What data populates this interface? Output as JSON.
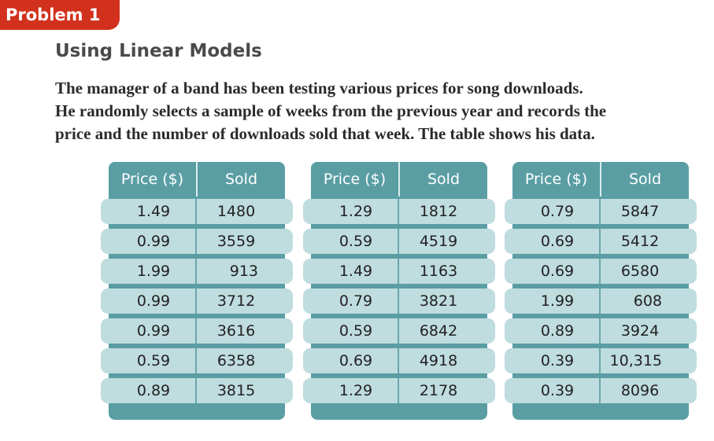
{
  "problem_tab": "Problem 1",
  "section_title": "Using Linear Models",
  "intro_lines": [
    "The manager of a band has been testing various prices for song downloads.",
    "He randomly selects a sample of weeks from the previous year and records the",
    "price and the number of downloads sold that week. The table shows his data."
  ],
  "tables": [
    {
      "headers": [
        "Price ($)",
        "Sold"
      ],
      "rows": [
        [
          "1.49",
          "1480"
        ],
        [
          "0.99",
          "3559"
        ],
        [
          "1.99",
          "913"
        ],
        [
          "0.99",
          "3712"
        ],
        [
          "0.99",
          "3616"
        ],
        [
          "0.59",
          "6358"
        ],
        [
          "0.89",
          "3815"
        ]
      ]
    },
    {
      "headers": [
        "Price ($)",
        "Sold"
      ],
      "rows": [
        [
          "1.29",
          "1812"
        ],
        [
          "0.59",
          "4519"
        ],
        [
          "1.49",
          "1163"
        ],
        [
          "0.79",
          "3821"
        ],
        [
          "0.59",
          "6842"
        ],
        [
          "0.69",
          "4918"
        ],
        [
          "1.29",
          "2178"
        ]
      ]
    },
    {
      "headers": [
        "Price ($)",
        "Sold"
      ],
      "rows": [
        [
          "0.79",
          "5847"
        ],
        [
          "0.69",
          "5412"
        ],
        [
          "0.69",
          "6580"
        ],
        [
          "1.99",
          "608"
        ],
        [
          "0.89",
          "3924"
        ],
        [
          "0.39",
          "10,315"
        ],
        [
          "0.39",
          "8096"
        ]
      ]
    }
  ],
  "colors": {
    "tab_red": "#d2311d",
    "table_teal": "#5a9ea4",
    "row_light": "#bfdcdf"
  }
}
